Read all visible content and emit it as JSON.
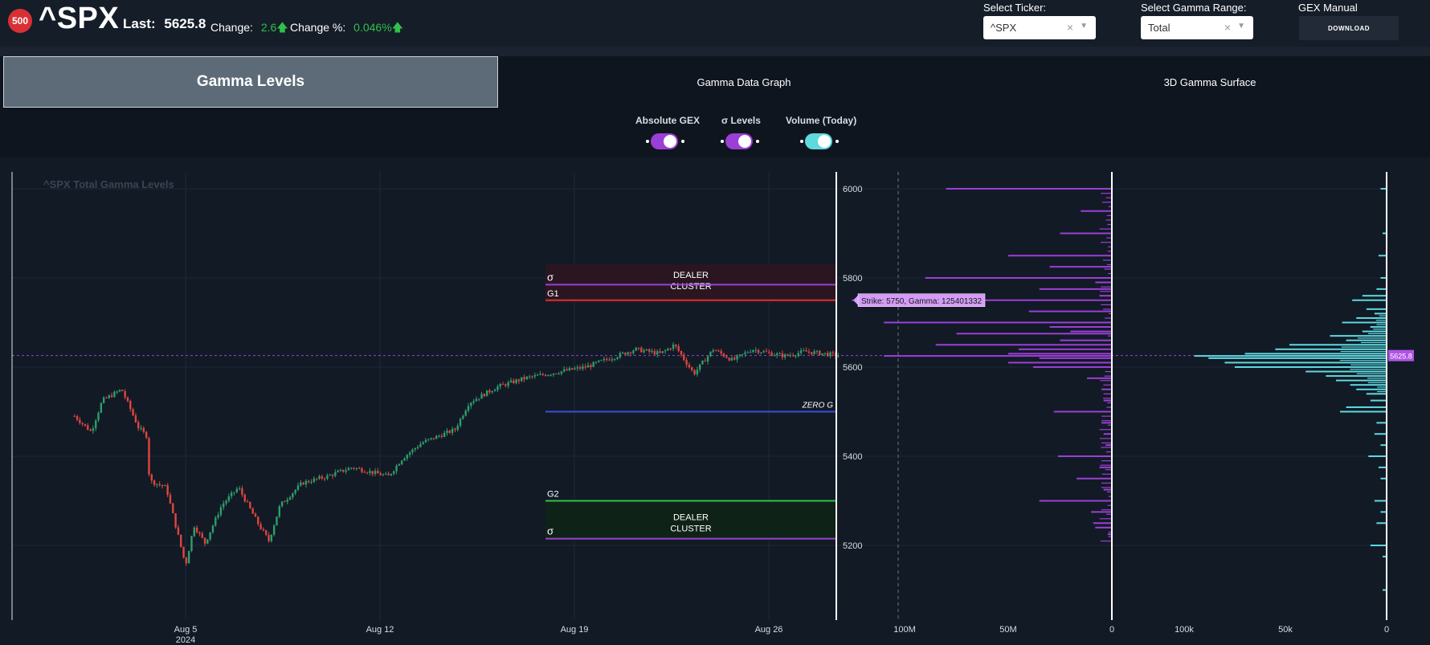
{
  "header": {
    "logo_text": "500",
    "ticker": "^SPX",
    "last_label": "Last:",
    "last_value": "5625.8",
    "change_label": "Change:",
    "change_value": "2.6",
    "change_pct_label": "Change %:",
    "change_pct_value": "0.046%",
    "up_arrow_icon": "arrow-up-icon",
    "up_color": "#2fc148",
    "select_ticker_label": "Select Ticker:",
    "select_ticker_value": "^SPX",
    "select_range_label": "Select Gamma Range:",
    "select_range_value": "Total",
    "clear_glyph": "×",
    "dropdown_glyph": "▼",
    "gex_manual_label": "GEX Manual",
    "download_label": "DOWNLOAD"
  },
  "tabs": [
    {
      "label": "Gamma Levels",
      "active": true
    },
    {
      "label": "Gamma Data Graph",
      "active": false
    },
    {
      "label": "3D Gamma Surface",
      "active": false
    }
  ],
  "toggles": [
    {
      "label": "Absolute GEX",
      "on": true,
      "color": "#9b3fd6"
    },
    {
      "label": "σ Levels",
      "on": true,
      "color": "#9b3fd6"
    },
    {
      "label": "Volume (Today)",
      "on": true,
      "color": "#5ed9e0"
    }
  ],
  "chart_data": {
    "type": "candlestick",
    "title": "^SPX Total Gamma Levels",
    "price_axis": {
      "ticks": [
        "6000",
        "5800",
        "5600",
        "5400",
        "5200"
      ],
      "range": [
        5080,
        6030
      ]
    },
    "x_ticks": [
      {
        "label": "Aug 5",
        "sub": "2024",
        "day": 5
      },
      {
        "label": "Aug 12",
        "sub": "",
        "day": 12
      },
      {
        "label": "Aug 19",
        "sub": "",
        "day": 19
      },
      {
        "label": "Aug 26",
        "sub": "",
        "day": 26
      }
    ],
    "current_price": 5625.8,
    "current_price_label": "5625.8",
    "levels": [
      {
        "name": "σ",
        "price": 5785,
        "color": "#9b3fd6",
        "kind": "sigma"
      },
      {
        "name": "G1",
        "price": 5750,
        "color": "#d93035",
        "kind": "g"
      },
      {
        "name": "ZERO G",
        "price": 5500,
        "color": "#3c4fd9",
        "kind": "zero"
      },
      {
        "name": "G2",
        "price": 5300,
        "color": "#2fc148",
        "kind": "g"
      },
      {
        "name": "σ",
        "price": 5215,
        "color": "#9b3fd6",
        "kind": "sigma"
      }
    ],
    "zones": [
      {
        "label": [
          "DEALER",
          "CLUSTER"
        ],
        "from": 5745,
        "to": 5830,
        "color": "#2a1620"
      },
      {
        "label": [
          "DEALER",
          "CLUSTER"
        ],
        "from": 5210,
        "to": 5300,
        "color": "#0f2218"
      }
    ],
    "tooltip": "Strike: 5750, Gamma: 125401332",
    "tooltip_strike": 5750,
    "gamma_axis": {
      "ticks": [
        "100M",
        "50M",
        "0"
      ],
      "max": 100000000
    },
    "volume_axis": {
      "ticks": [
        "100k",
        "50k",
        "0"
      ],
      "max": 100000
    },
    "candle_colors": {
      "up": "#2e9e6b",
      "down": "#e0453d"
    },
    "gamma_color": "#9b3fd6",
    "volume_color": "#5ed9e0",
    "price_path": [
      {
        "day": 1.0,
        "price": 5490
      },
      {
        "day": 1.6,
        "price": 5455
      },
      {
        "day": 2.0,
        "price": 5525
      },
      {
        "day": 2.7,
        "price": 5550
      },
      {
        "day": 3.3,
        "price": 5465
      },
      {
        "day": 3.6,
        "price": 5445
      },
      {
        "day": 3.7,
        "price": 5345
      },
      {
        "day": 4.3,
        "price": 5330
      },
      {
        "day": 5.0,
        "price": 5155
      },
      {
        "day": 5.3,
        "price": 5245
      },
      {
        "day": 5.7,
        "price": 5205
      },
      {
        "day": 6.3,
        "price": 5290
      },
      {
        "day": 6.9,
        "price": 5330
      },
      {
        "day": 7.6,
        "price": 5250
      },
      {
        "day": 8.0,
        "price": 5210
      },
      {
        "day": 8.4,
        "price": 5290
      },
      {
        "day": 9.2,
        "price": 5340
      },
      {
        "day": 10.1,
        "price": 5355
      },
      {
        "day": 11.0,
        "price": 5375
      },
      {
        "day": 12.3,
        "price": 5355
      },
      {
        "day": 12.8,
        "price": 5395
      },
      {
        "day": 13.5,
        "price": 5430
      },
      {
        "day": 14.7,
        "price": 5460
      },
      {
        "day": 15.2,
        "price": 5520
      },
      {
        "day": 16.2,
        "price": 5555
      },
      {
        "day": 17.2,
        "price": 5575
      },
      {
        "day": 18.5,
        "price": 5590
      },
      {
        "day": 19.4,
        "price": 5600
      },
      {
        "day": 20.3,
        "price": 5620
      },
      {
        "day": 21.2,
        "price": 5640
      },
      {
        "day": 22.1,
        "price": 5630
      },
      {
        "day": 22.6,
        "price": 5650
      },
      {
        "day": 23.3,
        "price": 5585
      },
      {
        "day": 24.0,
        "price": 5640
      },
      {
        "day": 24.7,
        "price": 5615
      },
      {
        "day": 25.4,
        "price": 5640
      },
      {
        "day": 26.1,
        "price": 5630
      },
      {
        "day": 26.6,
        "price": 5625
      },
      {
        "day": 27.3,
        "price": 5635
      },
      {
        "day": 28.0,
        "price": 5630
      },
      {
        "day": 28.5,
        "price": 5626
      }
    ],
    "gamma_bars": [
      {
        "strike": 6000,
        "gamma": 80000000
      },
      {
        "strike": 5950,
        "gamma": 15000000
      },
      {
        "strike": 5900,
        "gamma": 25000000
      },
      {
        "strike": 5850,
        "gamma": 50000000
      },
      {
        "strike": 5825,
        "gamma": 30000000
      },
      {
        "strike": 5800,
        "gamma": 90000000
      },
      {
        "strike": 5790,
        "gamma": 8000000
      },
      {
        "strike": 5775,
        "gamma": 35000000
      },
      {
        "strike": 5760,
        "gamma": 6000000
      },
      {
        "strike": 5750,
        "gamma": 125401332
      },
      {
        "strike": 5725,
        "gamma": 40000000
      },
      {
        "strike": 5700,
        "gamma": 110000000
      },
      {
        "strike": 5690,
        "gamma": 30000000
      },
      {
        "strike": 5680,
        "gamma": 20000000
      },
      {
        "strike": 5675,
        "gamma": 75000000
      },
      {
        "strike": 5660,
        "gamma": 25000000
      },
      {
        "strike": 5650,
        "gamma": 85000000
      },
      {
        "strike": 5640,
        "gamma": 45000000
      },
      {
        "strike": 5630,
        "gamma": 50000000
      },
      {
        "strike": 5625,
        "gamma": 110000000
      },
      {
        "strike": 5620,
        "gamma": 35000000
      },
      {
        "strike": 5610,
        "gamma": 50000000
      },
      {
        "strike": 5600,
        "gamma": 38000000
      },
      {
        "strike": 5575,
        "gamma": 12000000
      },
      {
        "strike": 5550,
        "gamma": 5000000
      },
      {
        "strike": 5525,
        "gamma": 4000000
      },
      {
        "strike": 5500,
        "gamma": 28000000
      },
      {
        "strike": 5475,
        "gamma": 5000000
      },
      {
        "strike": 5450,
        "gamma": 4000000
      },
      {
        "strike": 5425,
        "gamma": 3000000
      },
      {
        "strike": 5400,
        "gamma": 26000000
      },
      {
        "strike": 5375,
        "gamma": 6000000
      },
      {
        "strike": 5350,
        "gamma": 17000000
      },
      {
        "strike": 5325,
        "gamma": 4000000
      },
      {
        "strike": 5300,
        "gamma": 35000000
      },
      {
        "strike": 5275,
        "gamma": 10000000
      },
      {
        "strike": 5250,
        "gamma": 9000000
      },
      {
        "strike": 5240,
        "gamma": 8000000
      },
      {
        "strike": 5225,
        "gamma": 2000000
      }
    ],
    "volume_bars": [
      {
        "strike": 6000,
        "volume": 3000
      },
      {
        "strike": 5900,
        "volume": 2000
      },
      {
        "strike": 5850,
        "volume": 4000
      },
      {
        "strike": 5800,
        "volume": 3000
      },
      {
        "strike": 5775,
        "volume": 5000
      },
      {
        "strike": 5760,
        "volume": 12000
      },
      {
        "strike": 5750,
        "volume": 17000
      },
      {
        "strike": 5730,
        "volume": 10000
      },
      {
        "strike": 5720,
        "volume": 6000
      },
      {
        "strike": 5710,
        "volume": 15000
      },
      {
        "strike": 5700,
        "volume": 22000
      },
      {
        "strike": 5690,
        "volume": 8000
      },
      {
        "strike": 5680,
        "volume": 12000
      },
      {
        "strike": 5670,
        "volume": 28000
      },
      {
        "strike": 5660,
        "volume": 20000
      },
      {
        "strike": 5650,
        "volume": 48000
      },
      {
        "strike": 5640,
        "volume": 55000
      },
      {
        "strike": 5630,
        "volume": 70000
      },
      {
        "strike": 5625,
        "volume": 95000
      },
      {
        "strike": 5620,
        "volume": 88000
      },
      {
        "strike": 5610,
        "volume": 80000
      },
      {
        "strike": 5600,
        "volume": 75000
      },
      {
        "strike": 5590,
        "volume": 40000
      },
      {
        "strike": 5580,
        "volume": 30000
      },
      {
        "strike": 5570,
        "volume": 25000
      },
      {
        "strike": 5560,
        "volume": 18000
      },
      {
        "strike": 5550,
        "volume": 15000
      },
      {
        "strike": 5540,
        "volume": 10000
      },
      {
        "strike": 5525,
        "volume": 8000
      },
      {
        "strike": 5510,
        "volume": 20000
      },
      {
        "strike": 5500,
        "volume": 23000
      },
      {
        "strike": 5475,
        "volume": 5000
      },
      {
        "strike": 5450,
        "volume": 6000
      },
      {
        "strike": 5425,
        "volume": 3000
      },
      {
        "strike": 5400,
        "volume": 9000
      },
      {
        "strike": 5375,
        "volume": 4000
      },
      {
        "strike": 5350,
        "volume": 3000
      },
      {
        "strike": 5300,
        "volume": 6000
      },
      {
        "strike": 5275,
        "volume": 3000
      },
      {
        "strike": 5250,
        "volume": 5000
      },
      {
        "strike": 5200,
        "volume": 8000
      },
      {
        "strike": 5175,
        "volume": 2000
      },
      {
        "strike": 5100,
        "volume": 2000
      }
    ]
  }
}
